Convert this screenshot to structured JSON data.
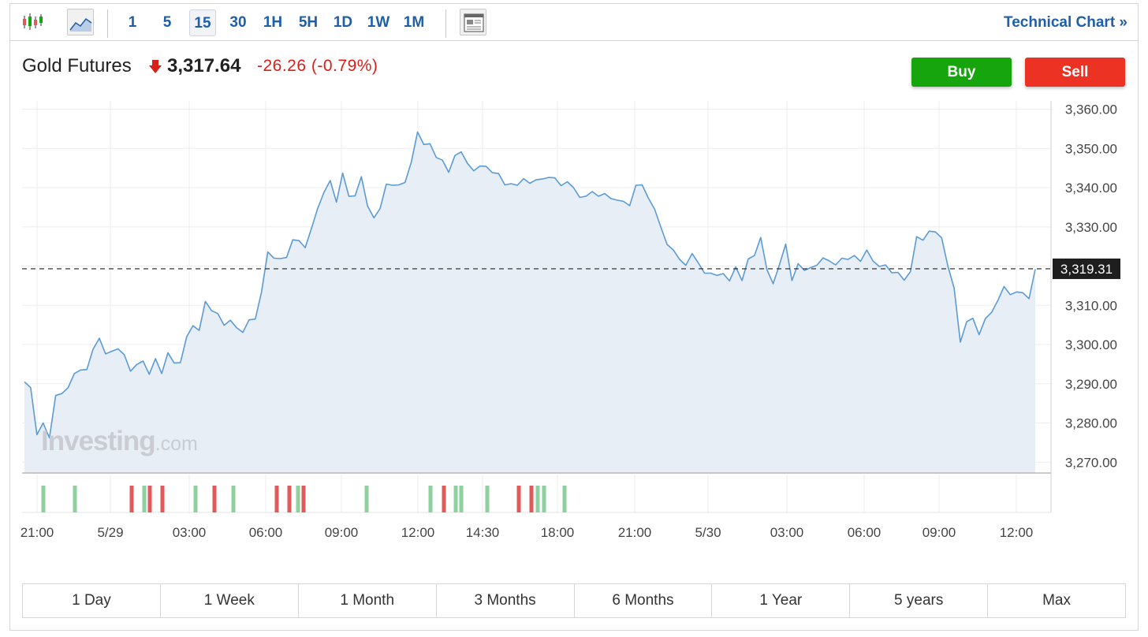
{
  "toolbar": {
    "intervals": [
      "1",
      "5",
      "15",
      "30",
      "1H",
      "5H",
      "1D",
      "1W",
      "1M"
    ],
    "active_interval": "15",
    "technical_chart_label": "Technical Chart »",
    "icons": [
      "candlestick-icon",
      "area-chart-icon",
      "news-layout-icon"
    ]
  },
  "instrument": {
    "name": "Gold Futures",
    "price": "3,317.64",
    "change": "-26.26",
    "change_pct": "(-0.79%)",
    "direction": "down"
  },
  "actions": {
    "buy_label": "Buy",
    "sell_label": "Sell"
  },
  "watermark": {
    "brand": "Investing",
    "suffix": ".com"
  },
  "ranges": [
    "1 Day",
    "1 Week",
    "1 Month",
    "3 Months",
    "6 Months",
    "1 Year",
    "5 years",
    "Max"
  ],
  "colors": {
    "line": "#5b9bd5",
    "area": "#e8eef6",
    "buy": "#17a50e",
    "sell": "#ec3323",
    "down": "#d91e18",
    "link": "#1f5fa8",
    "vol_up": "#8fd19e",
    "vol_down": "#e05a5a"
  },
  "chart_data": {
    "type": "area",
    "y_ticks": [
      "3,360.00",
      "3,350.00",
      "3,340.00",
      "3,330.00",
      "3,320.00",
      "3,310.00",
      "3,300.00",
      "3,290.00",
      "3,280.00",
      "3,270.00"
    ],
    "ylim": [
      3266,
      3363
    ],
    "x_ticks": [
      "21:00",
      "5/29",
      "03:00",
      "06:00",
      "09:00",
      "12:00",
      "14:30",
      "18:00",
      "21:00",
      "5/30",
      "03:00",
      "06:00",
      "09:00",
      "12:00"
    ],
    "current_price_label": "3,319.31",
    "current_price": 3319.31,
    "series": [
      {
        "values": [
          3290.5,
          3289,
          3277,
          3280,
          3276.2,
          3287,
          3287.5,
          3289,
          3292.6,
          3293.5,
          3293.6,
          3298.8,
          3301.6,
          3297.6,
          3298.3,
          3298.9,
          3297.4,
          3293.2,
          3294.9,
          3295.8,
          3292.4,
          3296.4,
          3292.6,
          3297.9,
          3295.3,
          3295.4,
          3302,
          3304.8,
          3303.6,
          3311,
          3308.6,
          3307.9,
          3304.9,
          3306.2,
          3304.3,
          3303.1,
          3306.3,
          3306.5,
          3313.4,
          3323.6,
          3322,
          3321.9,
          3322.2,
          3326.7,
          3326.5,
          3324.7,
          3329.6,
          3334.7,
          3338.8,
          3341.8,
          3336.3,
          3343.7,
          3337.8,
          3337.9,
          3342.8,
          3335.3,
          3332.3,
          3334.7,
          3340.9,
          3340.6,
          3340.7,
          3341.3,
          3346.5,
          3354.2,
          3351,
          3351.2,
          3347.7,
          3347,
          3343.9,
          3348.2,
          3349.1,
          3346.2,
          3344.3,
          3345.5,
          3345.4,
          3343.8,
          3343.6,
          3340.7,
          3341,
          3340.6,
          3342.3,
          3341.1,
          3342,
          3342.2,
          3342.6,
          3342.5,
          3340.5,
          3341.5,
          3340,
          3337.5,
          3337.8,
          3339,
          3337.8,
          3338.5,
          3337.2,
          3336.8,
          3336.5,
          3335.4,
          3340.6,
          3340.7,
          3337.3,
          3334.5,
          3329.9,
          3325.5,
          3324.1,
          3321.7,
          3320.2,
          3323.2,
          3320.8,
          3318.2,
          3318.2,
          3317.6,
          3318.1,
          3316.2,
          3319.8,
          3316.3,
          3321.8,
          3322.7,
          3327.3,
          3319.1,
          3315.5,
          3320.3,
          3325.6,
          3316.3,
          3320.6,
          3318.9,
          3319.6,
          3320.2,
          3322.1,
          3321.3,
          3320.3,
          3322,
          3321.7,
          3322.7,
          3321.2,
          3324.1,
          3321.3,
          3319.9,
          3320.3,
          3318.3,
          3318.4,
          3316.4,
          3318.6,
          3327.5,
          3326.6,
          3328.9,
          3328.7,
          3327.2,
          3320,
          3314.4,
          3300.6,
          3305.8,
          3306.7,
          3302.5,
          3306.6,
          3308.2,
          3311.2,
          3314.8,
          3312.7,
          3313.4,
          3313.2,
          3311.7,
          3319.2
        ]
      }
    ],
    "volume_bars": [
      {
        "i": 2,
        "dir": "up"
      },
      {
        "i": 7,
        "dir": "up"
      },
      {
        "i": 16,
        "dir": "down"
      },
      {
        "i": 18,
        "dir": "up"
      },
      {
        "i": 19,
        "dir": "down"
      },
      {
        "i": 21,
        "dir": "down"
      },
      {
        "i": 26,
        "dir": "up"
      },
      {
        "i": 29,
        "dir": "down"
      },
      {
        "i": 33,
        "dir": "up"
      },
      {
        "i": 38,
        "dir": "down"
      },
      {
        "i": 40,
        "dir": "down"
      },
      {
        "i": 42,
        "dir": "up"
      },
      {
        "i": 43,
        "dir": "down"
      },
      {
        "i": 55,
        "dir": "up"
      },
      {
        "i": 65,
        "dir": "up"
      },
      {
        "i": 67,
        "dir": "down"
      },
      {
        "i": 69,
        "dir": "up"
      },
      {
        "i": 70,
        "dir": "up"
      },
      {
        "i": 74,
        "dir": "up"
      },
      {
        "i": 79,
        "dir": "down"
      },
      {
        "i": 81,
        "dir": "down"
      },
      {
        "i": 82,
        "dir": "up"
      },
      {
        "i": 83,
        "dir": "up"
      },
      {
        "i": 86,
        "dir": "up"
      }
    ],
    "grid": true,
    "y_axis_position": "right"
  }
}
